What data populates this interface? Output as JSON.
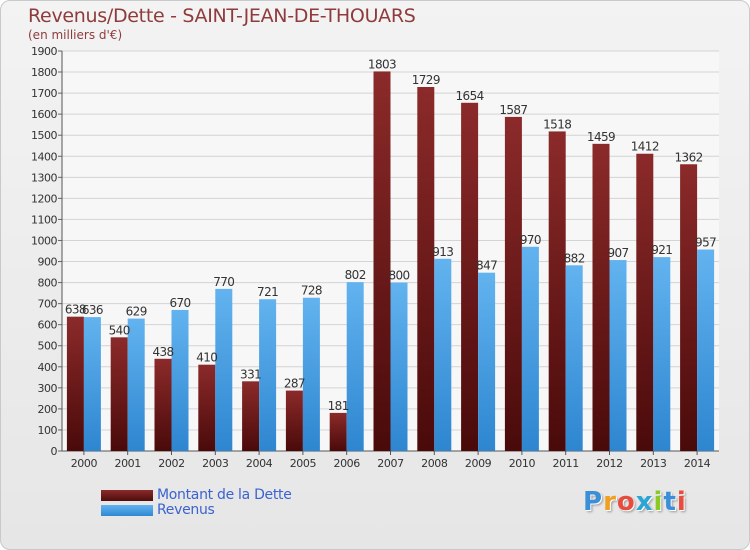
{
  "title": "Revenus/Dette - SAINT-JEAN-DE-THOUARS",
  "subtitle": "(en milliers d'€)",
  "logo": {
    "letters": [
      "P",
      "r",
      "o",
      "x",
      "i",
      "t",
      "i"
    ],
    "colors": [
      "#3a8fd8",
      "#f0a020",
      "#e74c3c",
      "#2aa5d6",
      "#8ac926",
      "#3a8fd8",
      "#e74c3c"
    ]
  },
  "colors": {
    "debt_top": "#8c2a2a",
    "debt_bottom": "#4a0a0a",
    "revenue_top": "#62b3ef",
    "revenue_bottom": "#2e86d0",
    "title": "#8f3b3b",
    "legend_text": "#3b63d0"
  },
  "chart_data": {
    "type": "bar",
    "categories": [
      "2000",
      "2001",
      "2002",
      "2003",
      "2004",
      "2005",
      "2006",
      "2007",
      "2008",
      "2009",
      "2010",
      "2011",
      "2012",
      "2013",
      "2014"
    ],
    "series": [
      {
        "name": "Montant de la Dette",
        "values": [
          638,
          540,
          438,
          410,
          331,
          287,
          181,
          1803,
          1729,
          1654,
          1587,
          1518,
          1459,
          1412,
          1362
        ]
      },
      {
        "name": "Revenus",
        "values": [
          636,
          629,
          670,
          770,
          721,
          728,
          802,
          800,
          913,
          847,
          970,
          882,
          907,
          921,
          957
        ]
      }
    ],
    "yticks": [
      0,
      100,
      200,
      300,
      400,
      500,
      600,
      700,
      800,
      900,
      1000,
      1100,
      1200,
      1300,
      1400,
      1500,
      1600,
      1700,
      1800,
      1900
    ],
    "ylim": [
      0,
      1900
    ],
    "grid": true,
    "legend": "bottom-left"
  }
}
